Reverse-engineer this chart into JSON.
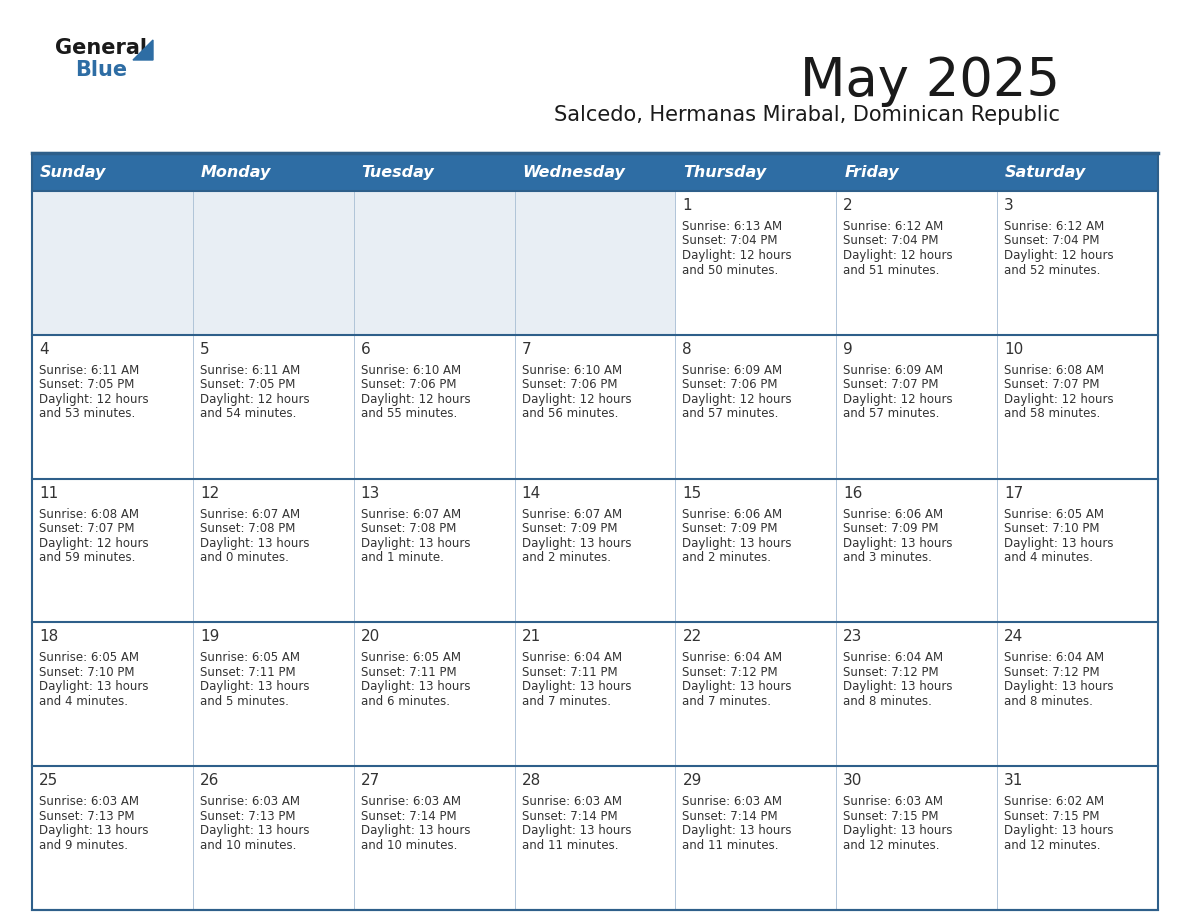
{
  "title": "May 2025",
  "subtitle": "Salcedo, Hermanas Mirabal, Dominican Republic",
  "header_bg": "#2e6da4",
  "header_text": "#ffffff",
  "row_bg_light": "#f0f4f8",
  "row_bg_white": "#ffffff",
  "separator_color": "#2e5f8a",
  "day_headers": [
    "Sunday",
    "Monday",
    "Tuesday",
    "Wednesday",
    "Thursday",
    "Friday",
    "Saturday"
  ],
  "days": [
    {
      "day": 1,
      "col": 4,
      "row": 0,
      "sunrise": "6:13 AM",
      "sunset": "7:04 PM",
      "daylight_h": "12 hours",
      "daylight_m": "50 minutes."
    },
    {
      "day": 2,
      "col": 5,
      "row": 0,
      "sunrise": "6:12 AM",
      "sunset": "7:04 PM",
      "daylight_h": "12 hours",
      "daylight_m": "51 minutes."
    },
    {
      "day": 3,
      "col": 6,
      "row": 0,
      "sunrise": "6:12 AM",
      "sunset": "7:04 PM",
      "daylight_h": "12 hours",
      "daylight_m": "52 minutes."
    },
    {
      "day": 4,
      "col": 0,
      "row": 1,
      "sunrise": "6:11 AM",
      "sunset": "7:05 PM",
      "daylight_h": "12 hours",
      "daylight_m": "53 minutes."
    },
    {
      "day": 5,
      "col": 1,
      "row": 1,
      "sunrise": "6:11 AM",
      "sunset": "7:05 PM",
      "daylight_h": "12 hours",
      "daylight_m": "54 minutes."
    },
    {
      "day": 6,
      "col": 2,
      "row": 1,
      "sunrise": "6:10 AM",
      "sunset": "7:06 PM",
      "daylight_h": "12 hours",
      "daylight_m": "55 minutes."
    },
    {
      "day": 7,
      "col": 3,
      "row": 1,
      "sunrise": "6:10 AM",
      "sunset": "7:06 PM",
      "daylight_h": "12 hours",
      "daylight_m": "56 minutes."
    },
    {
      "day": 8,
      "col": 4,
      "row": 1,
      "sunrise": "6:09 AM",
      "sunset": "7:06 PM",
      "daylight_h": "12 hours",
      "daylight_m": "57 minutes."
    },
    {
      "day": 9,
      "col": 5,
      "row": 1,
      "sunrise": "6:09 AM",
      "sunset": "7:07 PM",
      "daylight_h": "12 hours",
      "daylight_m": "57 minutes."
    },
    {
      "day": 10,
      "col": 6,
      "row": 1,
      "sunrise": "6:08 AM",
      "sunset": "7:07 PM",
      "daylight_h": "12 hours",
      "daylight_m": "58 minutes."
    },
    {
      "day": 11,
      "col": 0,
      "row": 2,
      "sunrise": "6:08 AM",
      "sunset": "7:07 PM",
      "daylight_h": "12 hours",
      "daylight_m": "59 minutes."
    },
    {
      "day": 12,
      "col": 1,
      "row": 2,
      "sunrise": "6:07 AM",
      "sunset": "7:08 PM",
      "daylight_h": "13 hours",
      "daylight_m": "0 minutes."
    },
    {
      "day": 13,
      "col": 2,
      "row": 2,
      "sunrise": "6:07 AM",
      "sunset": "7:08 PM",
      "daylight_h": "13 hours",
      "daylight_m": "1 minute."
    },
    {
      "day": 14,
      "col": 3,
      "row": 2,
      "sunrise": "6:07 AM",
      "sunset": "7:09 PM",
      "daylight_h": "13 hours",
      "daylight_m": "2 minutes."
    },
    {
      "day": 15,
      "col": 4,
      "row": 2,
      "sunrise": "6:06 AM",
      "sunset": "7:09 PM",
      "daylight_h": "13 hours",
      "daylight_m": "2 minutes."
    },
    {
      "day": 16,
      "col": 5,
      "row": 2,
      "sunrise": "6:06 AM",
      "sunset": "7:09 PM",
      "daylight_h": "13 hours",
      "daylight_m": "3 minutes."
    },
    {
      "day": 17,
      "col": 6,
      "row": 2,
      "sunrise": "6:05 AM",
      "sunset": "7:10 PM",
      "daylight_h": "13 hours",
      "daylight_m": "4 minutes."
    },
    {
      "day": 18,
      "col": 0,
      "row": 3,
      "sunrise": "6:05 AM",
      "sunset": "7:10 PM",
      "daylight_h": "13 hours",
      "daylight_m": "4 minutes."
    },
    {
      "day": 19,
      "col": 1,
      "row": 3,
      "sunrise": "6:05 AM",
      "sunset": "7:11 PM",
      "daylight_h": "13 hours",
      "daylight_m": "5 minutes."
    },
    {
      "day": 20,
      "col": 2,
      "row": 3,
      "sunrise": "6:05 AM",
      "sunset": "7:11 PM",
      "daylight_h": "13 hours",
      "daylight_m": "6 minutes."
    },
    {
      "day": 21,
      "col": 3,
      "row": 3,
      "sunrise": "6:04 AM",
      "sunset": "7:11 PM",
      "daylight_h": "13 hours",
      "daylight_m": "7 minutes."
    },
    {
      "day": 22,
      "col": 4,
      "row": 3,
      "sunrise": "6:04 AM",
      "sunset": "7:12 PM",
      "daylight_h": "13 hours",
      "daylight_m": "7 minutes."
    },
    {
      "day": 23,
      "col": 5,
      "row": 3,
      "sunrise": "6:04 AM",
      "sunset": "7:12 PM",
      "daylight_h": "13 hours",
      "daylight_m": "8 minutes."
    },
    {
      "day": 24,
      "col": 6,
      "row": 3,
      "sunrise": "6:04 AM",
      "sunset": "7:12 PM",
      "daylight_h": "13 hours",
      "daylight_m": "8 minutes."
    },
    {
      "day": 25,
      "col": 0,
      "row": 4,
      "sunrise": "6:03 AM",
      "sunset": "7:13 PM",
      "daylight_h": "13 hours",
      "daylight_m": "9 minutes."
    },
    {
      "day": 26,
      "col": 1,
      "row": 4,
      "sunrise": "6:03 AM",
      "sunset": "7:13 PM",
      "daylight_h": "13 hours",
      "daylight_m": "10 minutes."
    },
    {
      "day": 27,
      "col": 2,
      "row": 4,
      "sunrise": "6:03 AM",
      "sunset": "7:14 PM",
      "daylight_h": "13 hours",
      "daylight_m": "10 minutes."
    },
    {
      "day": 28,
      "col": 3,
      "row": 4,
      "sunrise": "6:03 AM",
      "sunset": "7:14 PM",
      "daylight_h": "13 hours",
      "daylight_m": "11 minutes."
    },
    {
      "day": 29,
      "col": 4,
      "row": 4,
      "sunrise": "6:03 AM",
      "sunset": "7:14 PM",
      "daylight_h": "13 hours",
      "daylight_m": "11 minutes."
    },
    {
      "day": 30,
      "col": 5,
      "row": 4,
      "sunrise": "6:03 AM",
      "sunset": "7:15 PM",
      "daylight_h": "13 hours",
      "daylight_m": "12 minutes."
    },
    {
      "day": 31,
      "col": 6,
      "row": 4,
      "sunrise": "6:02 AM",
      "sunset": "7:15 PM",
      "daylight_h": "13 hours",
      "daylight_m": "12 minutes."
    }
  ]
}
